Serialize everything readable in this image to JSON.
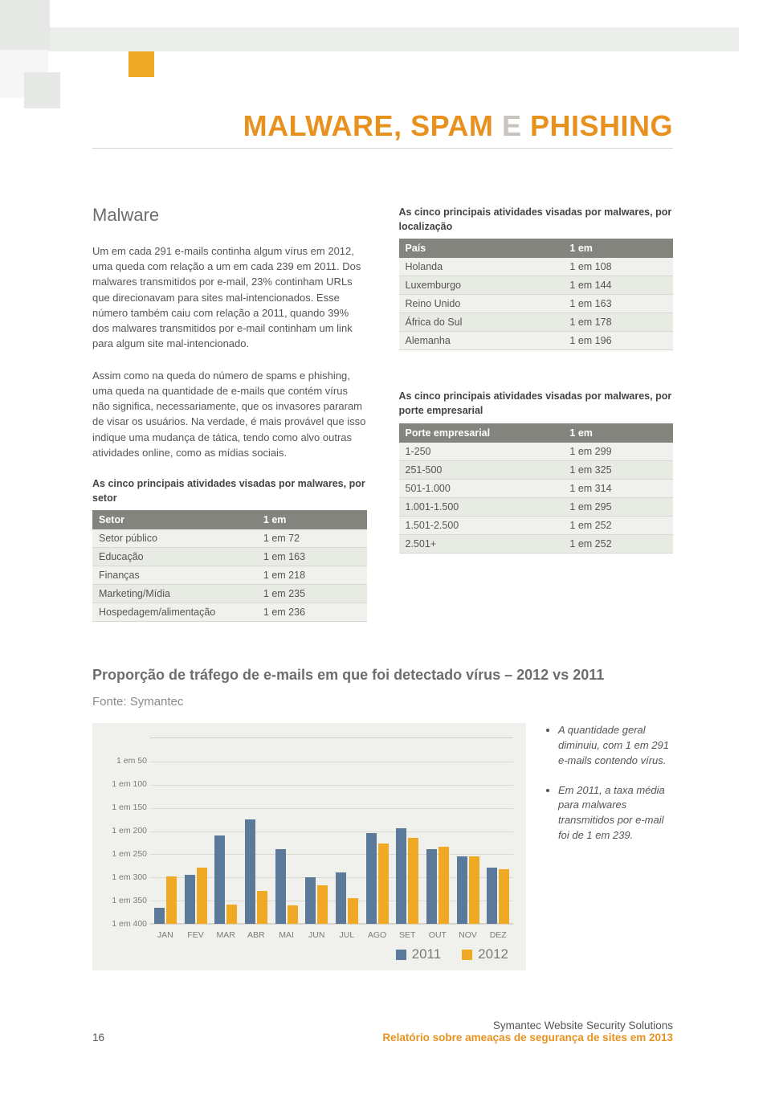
{
  "heading": {
    "part1": "MALWARE, SPAM",
    "conj": "E",
    "part2": "PHISHING"
  },
  "section_title": "Malware",
  "para1": "Um em cada 291 e-mails continha algum vírus em 2012, uma queda com relação a um em cada 239 em 2011. Dos malwares transmitidos por e-mail, 23% continham URLs que direcionavam para sites mal-intencionados. Esse número também caiu com relação a 2011, quando 39% dos malwares transmitidos por e-mail continham um link para algum site mal-intencionado.",
  "para2": "Assim como na queda do número de spams e phishing, uma queda na quantidade de e-mails que contém vírus não significa, necessariamente, que os invasores pararam de visar os usuários. Na verdade, é mais provável que isso indique uma mudança de tática, tendo como alvo outras atividades online, como as mídias sociais.",
  "table_sector": {
    "title": "As cinco principais atividades visadas por malwares, por setor",
    "headers": [
      "Setor",
      "1 em"
    ],
    "rows": [
      [
        "Setor público",
        "1 em 72"
      ],
      [
        "Educação",
        "1 em 163"
      ],
      [
        "Finanças",
        "1 em 218"
      ],
      [
        "Marketing/Mídia",
        "1 em 235"
      ],
      [
        "Hospedagem/alimentação",
        "1 em 236"
      ]
    ]
  },
  "table_location": {
    "title": "As cinco principais atividades visadas por malwares, por localização",
    "headers": [
      "País",
      "1 em"
    ],
    "rows": [
      [
        "Holanda",
        "1 em 108"
      ],
      [
        "Luxemburgo",
        "1 em 144"
      ],
      [
        "Reino Unido",
        "1 em 163"
      ],
      [
        "África do Sul",
        "1 em 178"
      ],
      [
        "Alemanha",
        "1 em 196"
      ]
    ]
  },
  "table_size": {
    "title": "As cinco principais atividades visadas por malwares, por porte empresarial",
    "headers": [
      "Porte empresarial",
      "1 em"
    ],
    "rows": [
      [
        "1-250",
        "1 em 299"
      ],
      [
        "251-500",
        "1 em 325"
      ],
      [
        "501-1.000",
        "1 em 314"
      ],
      [
        "1.001-1.500",
        "1 em 295"
      ],
      [
        "1.501-2.500",
        "1 em 252"
      ],
      [
        "2.501+",
        "1 em 252"
      ]
    ]
  },
  "chart": {
    "title": "Proporção de tráfego de e-mails em que foi detectado vírus – 2012 vs 2011",
    "source": "Fonte: Symantec",
    "type": "bar",
    "ymin": 0,
    "ymax": 400,
    "yticks": [
      50,
      100,
      150,
      200,
      250,
      300,
      350,
      400
    ],
    "ytick_prefix": "1 em ",
    "months": [
      "JAN",
      "FEV",
      "MAR",
      "ABR",
      "MAI",
      "JUN",
      "JUL",
      "AGO",
      "SET",
      "OUT",
      "NOV",
      "DEZ"
    ],
    "series": {
      "2011": {
        "color": "#5b7a9a",
        "values": [
          365,
          295,
          210,
          175,
          240,
          300,
          290,
          205,
          195,
          240,
          255,
          280
        ]
      },
      "2012": {
        "color": "#f0a925",
        "values": [
          298,
          280,
          358,
          330,
          360,
          318,
          345,
          228,
          215,
          235,
          255,
          283
        ]
      }
    },
    "legend": [
      "2011",
      "2012"
    ],
    "background": "#f0f1ed",
    "grid_color": "#d8d9d3"
  },
  "bullets": [
    "A quantidade geral diminuiu, com 1 em 291 e-mails contendo vírus.",
    "Em 2011, a taxa média para malwares transmitidos por e-mail foi de 1 em 239."
  ],
  "footer": {
    "line1": "Symantec Website Security Solutions",
    "line2": "Relatório sobre ameaças de segurança de sites em 2013",
    "page": "16"
  }
}
